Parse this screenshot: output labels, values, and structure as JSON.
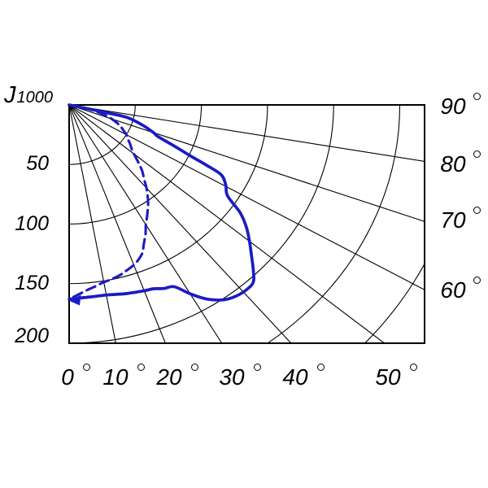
{
  "corner_label": {
    "main": "J",
    "sub": "1000"
  },
  "left_axis": {
    "tick_labels": [
      "50",
      "100",
      "150",
      "200"
    ]
  },
  "bottom_axis": {
    "tick_labels": [
      "0",
      "10",
      "20",
      "30",
      "40",
      "50"
    ],
    "unit": "degree"
  },
  "right_axis": {
    "tick_labels": [
      "90",
      "80",
      "70",
      "60"
    ],
    "unit": "degree"
  },
  "colors": {
    "curve": "#1b1bc4",
    "grid": "#000000",
    "background": "#ffffff"
  },
  "chart_data": {
    "type": "line",
    "subtype": "polar-photometric-intensity-distribution",
    "title": "Luminous intensity distribution curve (polar grid, quarter plane)",
    "radial_axis": {
      "label": "J1000",
      "tick_values": [
        50,
        100,
        150,
        200
      ],
      "ring_step": 50,
      "rings_drawn": [
        50,
        100,
        150,
        200,
        250,
        300
      ]
    },
    "angular_axis": {
      "bottom_tick_deg": [
        0,
        10,
        20,
        30,
        40,
        50
      ],
      "right_tick_deg": [
        90,
        80,
        70,
        60
      ],
      "grid_step_deg": 10,
      "gamma_zero_direction": "down-left-edge"
    },
    "legend": "none",
    "series": [
      {
        "name": "solid-curve",
        "style": "solid",
        "points_gamma_intensity": [
          [
            76,
            0
          ],
          [
            77,
            30
          ],
          [
            76.5,
            45
          ],
          [
            73,
            58
          ],
          [
            70,
            68
          ],
          [
            68.5,
            72
          ],
          [
            66.5,
            87
          ],
          [
            65,
            101
          ],
          [
            64,
            116
          ],
          [
            63,
            129
          ],
          [
            60.5,
            136
          ],
          [
            57.5,
            142
          ],
          [
            55,
            158
          ],
          [
            52.5,
            169
          ],
          [
            50,
            178
          ],
          [
            47.5,
            187
          ],
          [
            45,
            197
          ],
          [
            43,
            204
          ],
          [
            40.5,
            205
          ],
          [
            38,
            204
          ],
          [
            35.5,
            201
          ],
          [
            32.5,
            193
          ],
          [
            30,
            183
          ],
          [
            27.5,
            172
          ],
          [
            25,
            170
          ],
          [
            22.5,
            167
          ],
          [
            20,
            166
          ],
          [
            15,
            164
          ],
          [
            10,
            162
          ],
          [
            5,
            162
          ],
          [
            0,
            163
          ]
        ]
      },
      {
        "name": "dashed-curve",
        "style": "dashed",
        "points_gamma_intensity": [
          [
            83,
            0
          ],
          [
            80,
            8
          ],
          [
            77,
            15
          ],
          [
            74,
            24
          ],
          [
            71,
            32
          ],
          [
            68,
            38
          ],
          [
            65,
            43
          ],
          [
            62,
            47
          ],
          [
            60,
            50
          ],
          [
            57,
            53
          ],
          [
            55,
            56
          ],
          [
            52,
            60
          ],
          [
            50,
            64
          ],
          [
            47,
            72
          ],
          [
            45,
            78
          ],
          [
            42,
            85
          ],
          [
            40,
            91
          ],
          [
            37,
            99
          ],
          [
            35,
            104
          ],
          [
            32,
            111
          ],
          [
            30,
            116
          ],
          [
            28,
            123
          ],
          [
            26,
            129
          ],
          [
            24,
            136
          ],
          [
            22,
            140
          ],
          [
            20,
            143
          ],
          [
            17,
            146
          ],
          [
            15,
            148
          ],
          [
            12,
            150
          ],
          [
            10,
            151
          ],
          [
            7,
            154
          ],
          [
            5,
            156
          ],
          [
            2,
            160
          ],
          [
            0,
            163
          ]
        ]
      }
    ],
    "arrow_marker": {
      "at_gamma": 0,
      "at_intensity": 163,
      "direction": "left"
    }
  }
}
